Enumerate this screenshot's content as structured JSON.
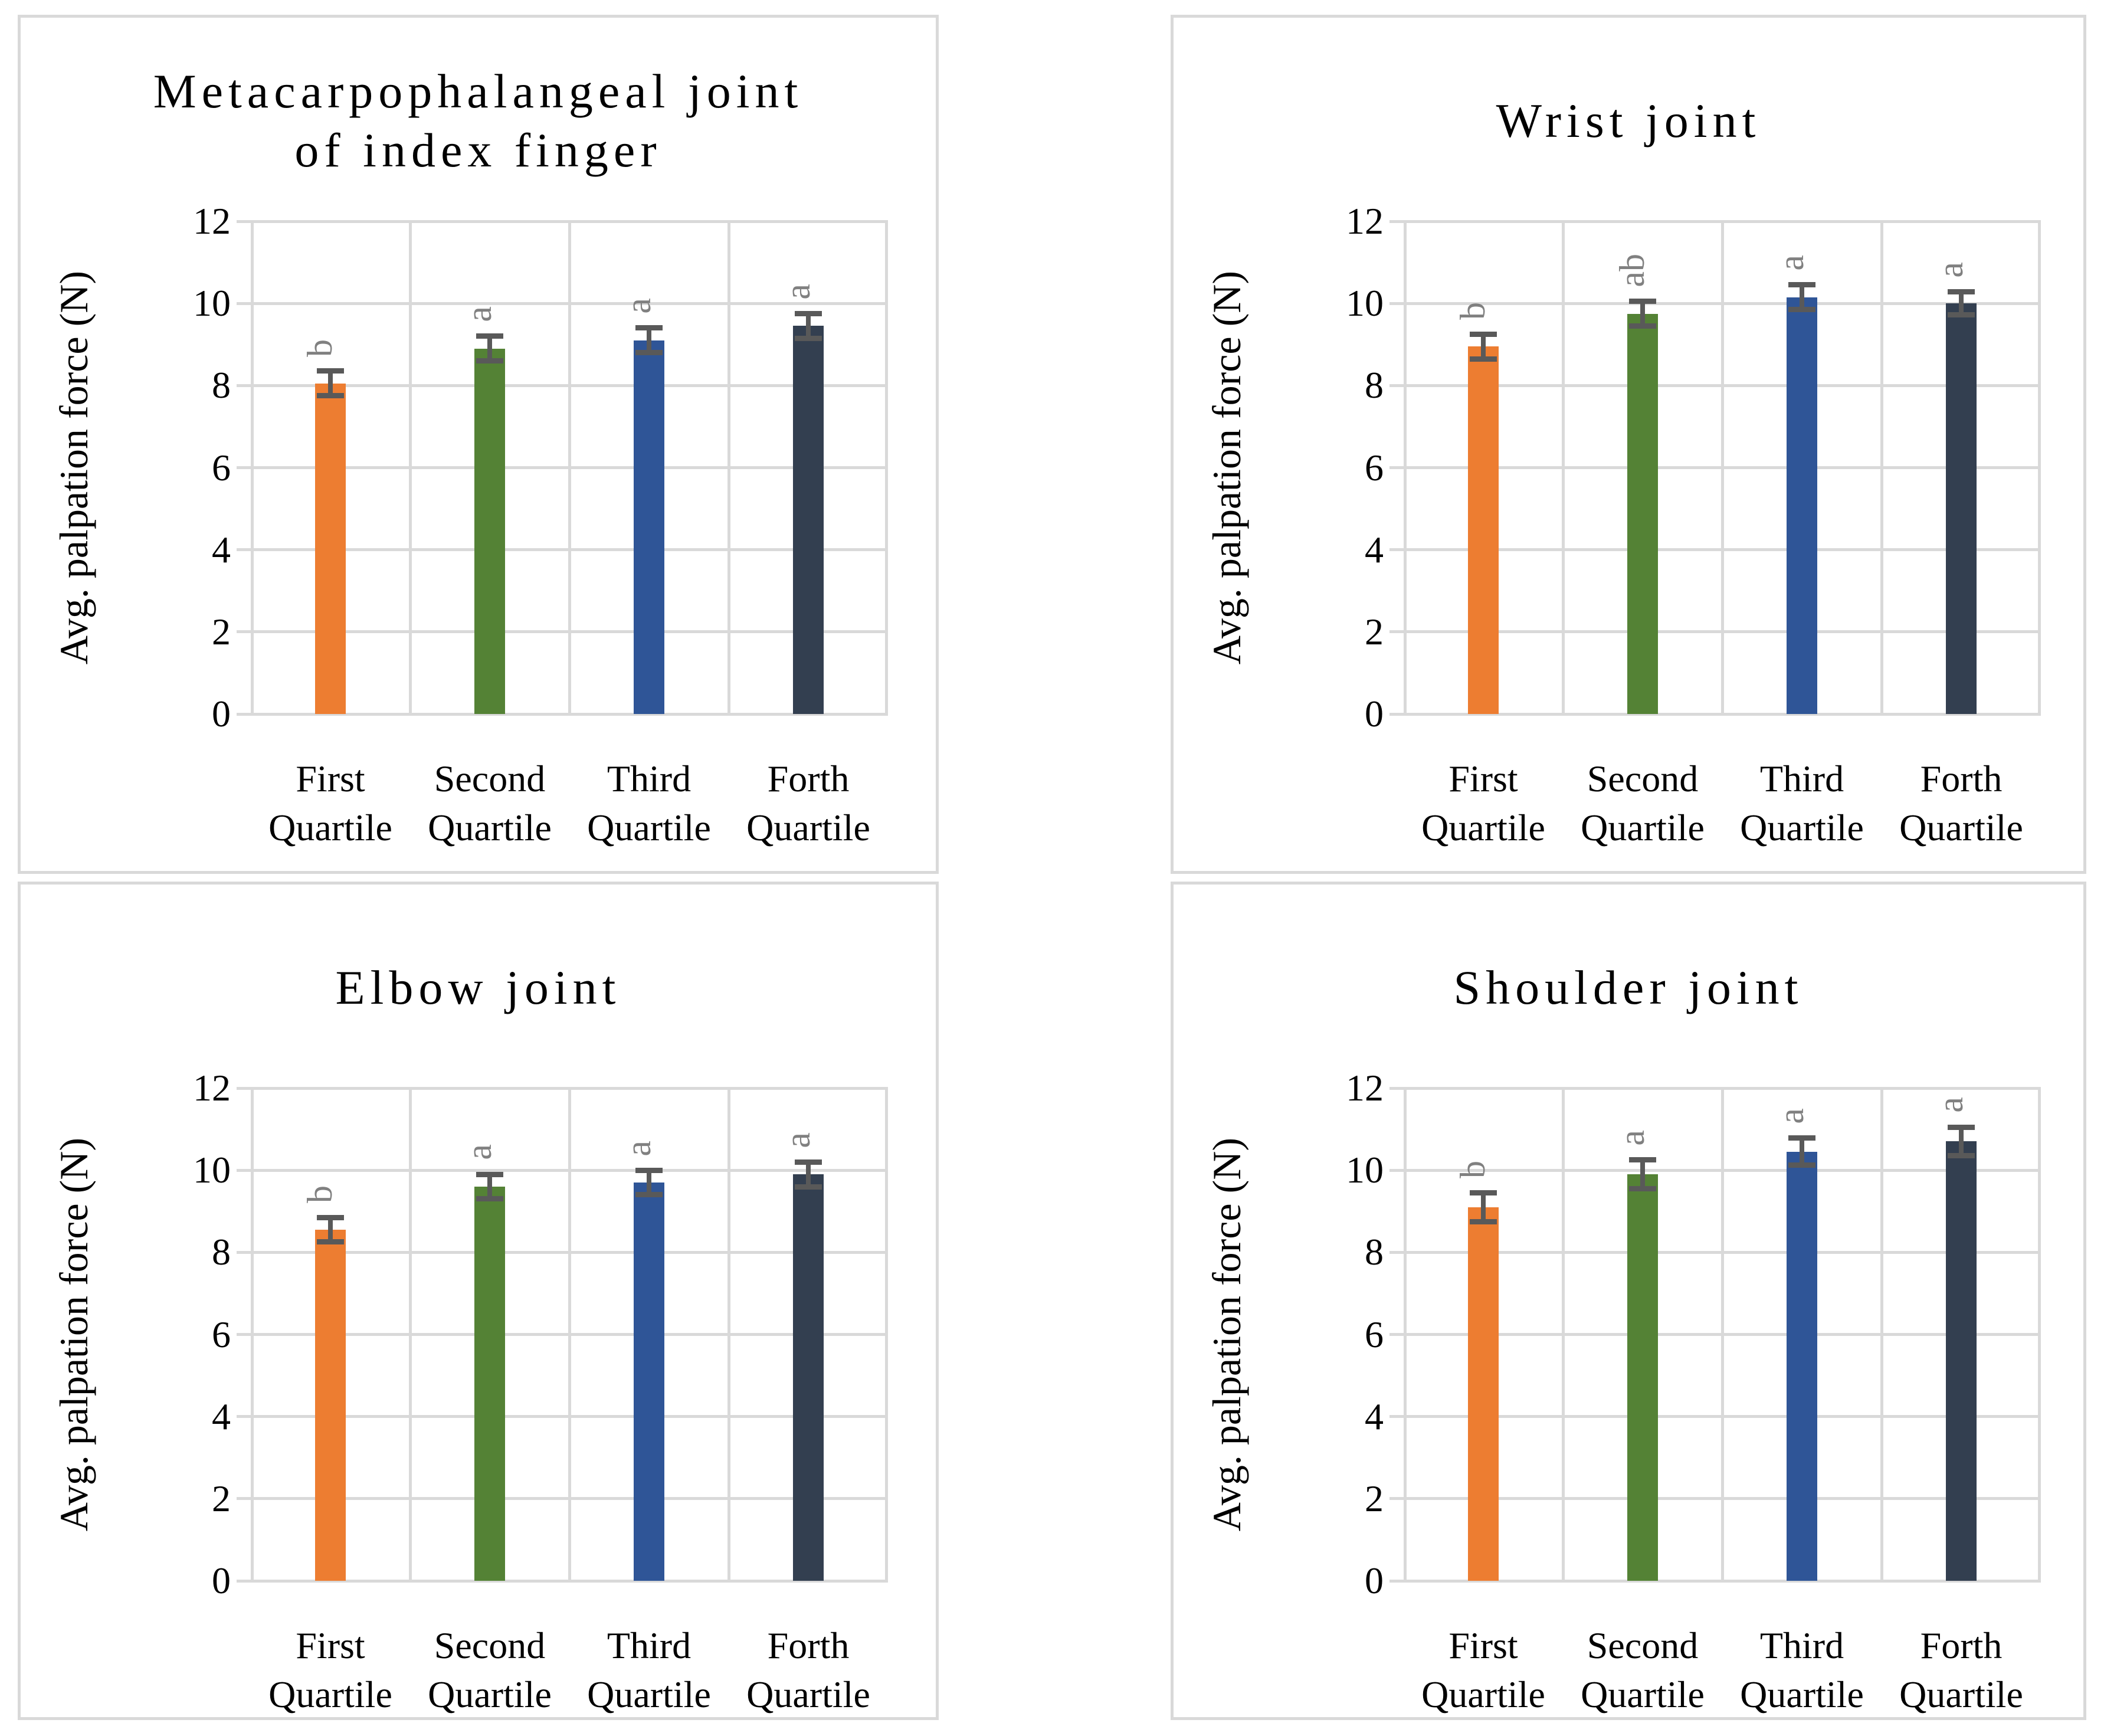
{
  "figure": {
    "y_axis_label": "Avg. palpation force (N)",
    "layout": "2x2 grid of bar charts",
    "grid": true,
    "legend": "none"
  },
  "style": {
    "bar_colors": [
      "#ED7D31",
      "#548235",
      "#2F5597",
      "#333F50"
    ],
    "error_bar_color": "#595959",
    "sig_letter_color": "#808080",
    "gridline_color": "#D9D9D9",
    "panel_border_color": "#D9D9D9",
    "text_color": "#000000",
    "background": "#FFFFFF"
  },
  "chart_data": [
    {
      "type": "bar",
      "title": "Metacarpophalangeal joint of index finger",
      "title_lines": [
        "Metacarpophalangeal joint",
        "of index finger"
      ],
      "categories": [
        "First Quartile",
        "Second Quartile",
        "Third Quartile",
        "Forth Quartile"
      ],
      "values": [
        8.05,
        8.9,
        9.1,
        9.45
      ],
      "errors": [
        0.3,
        0.3,
        0.3,
        0.3
      ],
      "sig_letters": [
        "b",
        "a",
        "a",
        "a"
      ],
      "xlabel": "",
      "ylabel": "Avg. palpation force (N)",
      "ylim": [
        0,
        12
      ],
      "ytick_step": 2
    },
    {
      "type": "bar",
      "title": "Wrist joint",
      "title_lines": [
        "Wrist joint"
      ],
      "categories": [
        "First Quartile",
        "Second Quartile",
        "Third Quartile",
        "Forth Quartile"
      ],
      "values": [
        8.95,
        9.75,
        10.15,
        10.0
      ],
      "errors": [
        0.3,
        0.3,
        0.3,
        0.28
      ],
      "sig_letters": [
        "b",
        "ab",
        "a",
        "a"
      ],
      "xlabel": "",
      "ylabel": "Avg. palpation force (N)",
      "ylim": [
        0,
        12
      ],
      "ytick_step": 2
    },
    {
      "type": "bar",
      "title": "Elbow joint",
      "title_lines": [
        "Elbow joint"
      ],
      "categories": [
        "First Quartile",
        "Second Quartile",
        "Third Quartile",
        "Forth Quartile"
      ],
      "values": [
        8.55,
        9.6,
        9.7,
        9.9
      ],
      "errors": [
        0.3,
        0.3,
        0.3,
        0.3
      ],
      "sig_letters": [
        "b",
        "a",
        "a",
        "a"
      ],
      "xlabel": "",
      "ylabel": "Avg. palpation force (N)",
      "ylim": [
        0,
        12
      ],
      "ytick_step": 2
    },
    {
      "type": "bar",
      "title": "Shoulder joint",
      "title_lines": [
        "Shoulder joint"
      ],
      "categories": [
        "First Quartile",
        "Second Quartile",
        "Third Quartile",
        "Forth Quartile"
      ],
      "values": [
        9.1,
        9.9,
        10.45,
        10.7
      ],
      "errors": [
        0.35,
        0.35,
        0.33,
        0.35
      ],
      "sig_letters": [
        "b",
        "a",
        "a",
        "a"
      ],
      "xlabel": "",
      "ylabel": "Avg. palpation force (N)",
      "ylim": [
        0,
        12
      ],
      "ytick_step": 2
    }
  ]
}
